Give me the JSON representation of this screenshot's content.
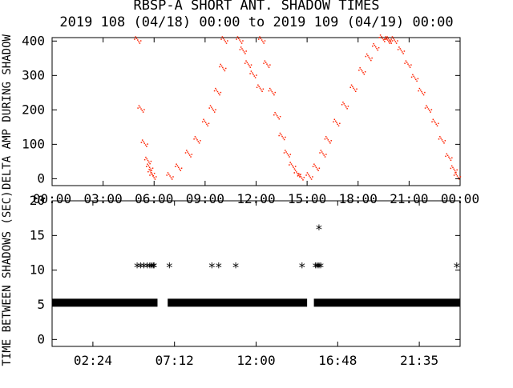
{
  "title": "RBSP-A SHORT ANT. SHADOW TIMES",
  "subtitle": "2019 108 (04/18) 00:00 to 2019 109 (04/19) 00:00",
  "colors": {
    "points": "#ff2200",
    "markers": "#000000",
    "axes": "#000000"
  },
  "chart_data": [
    {
      "type": "scatter",
      "ylabel": "DELTA AMP DURING SHADOW",
      "xlabel": "",
      "xlim": [
        0,
        24
      ],
      "ylim": [
        -20,
        410
      ],
      "xtick_values": [
        0,
        3,
        6,
        9,
        12,
        15,
        18,
        21,
        24
      ],
      "xtick_labels": [
        "00:00",
        "03:00",
        "06:00",
        "09:00",
        "12:00",
        "15:00",
        "18:00",
        "21:00",
        "00:00"
      ],
      "ytick_values": [
        0,
        100,
        200,
        300,
        400
      ],
      "ytick_labels": [
        "0",
        "100",
        "200",
        "300",
        "400"
      ],
      "marker_color": "#ff2200",
      "series": [
        {
          "x": [
            5.0,
            5.2,
            5.4,
            5.6,
            5.7,
            5.8,
            5.9
          ],
          "y": [
            400,
            200,
            100,
            50,
            30,
            15,
            5
          ]
        },
        {
          "x": [
            6.9,
            7.4,
            8.0,
            8.5,
            9.0,
            9.4,
            9.7,
            10.0,
            10.1
          ],
          "y": [
            5,
            30,
            70,
            110,
            160,
            200,
            250,
            320,
            400
          ]
        },
        {
          "x": [
            11.0,
            11.2,
            11.5,
            11.8,
            12.2
          ],
          "y": [
            400,
            370,
            330,
            300,
            260
          ]
        },
        {
          "x": [
            12.3,
            12.6,
            12.9,
            13.2,
            13.5,
            13.8,
            14.1,
            14.4,
            14.6
          ],
          "y": [
            400,
            330,
            250,
            180,
            120,
            70,
            35,
            12,
            3
          ]
        },
        {
          "x": [
            15.1,
            15.5,
            15.9,
            16.2,
            16.7,
            17.2,
            17.7,
            18.2,
            18.6,
            19.0,
            19.4,
            19.7
          ],
          "y": [
            5,
            30,
            70,
            110,
            160,
            210,
            260,
            310,
            350,
            380,
            405,
            400
          ]
        },
        {
          "x": [
            19.8,
            20.1,
            20.5,
            20.9,
            21.3,
            21.7,
            22.1,
            22.5,
            22.9,
            23.3,
            23.6,
            23.8
          ],
          "y": [
            400,
            400,
            370,
            330,
            290,
            250,
            200,
            160,
            110,
            60,
            25,
            5
          ]
        }
      ]
    },
    {
      "type": "scatter",
      "ylabel": "TIME BETWEEN SHADOWS (SEC)",
      "xlabel": "",
      "xlim": [
        0,
        24
      ],
      "ylim": [
        -1,
        20
      ],
      "xtick_values": [
        2.4,
        7.2,
        12.0,
        16.8,
        21.6
      ],
      "xtick_labels": [
        "02:24",
        "07:12",
        "12:00",
        "16:48",
        "21:35"
      ],
      "ytick_values": [
        0,
        5,
        10,
        15,
        20
      ],
      "ytick_labels": [
        "0",
        "5",
        "10",
        "15",
        "20"
      ],
      "marker_color": "#000000",
      "baseline": {
        "value": 5.3,
        "segments": [
          [
            0,
            6.2
          ],
          [
            6.8,
            15.0
          ],
          [
            15.4,
            24.0
          ]
        ]
      },
      "points": {
        "x": [
          5.0,
          5.2,
          5.4,
          5.6,
          5.75,
          5.85,
          5.95,
          6.0,
          6.9,
          9.4,
          9.8,
          10.8,
          14.7,
          15.5,
          15.6,
          15.7,
          15.8,
          15.7,
          23.8
        ],
        "y": [
          10.6,
          10.6,
          10.6,
          10.6,
          10.6,
          10.6,
          10.6,
          10.6,
          10.6,
          10.6,
          10.6,
          10.6,
          10.6,
          10.6,
          10.6,
          10.6,
          10.6,
          16.1,
          10.6
        ]
      }
    }
  ]
}
